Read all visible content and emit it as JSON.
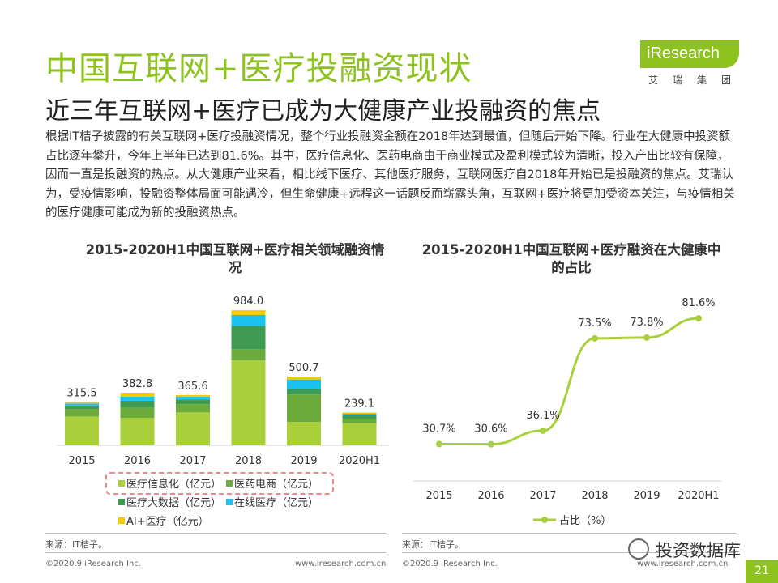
{
  "header": {
    "title": "中国互联网+医疗投融资现状",
    "subtitle": "近三年互联网+医疗已成为大健康产业投融资的焦点",
    "logo_text": "iResearch",
    "logo_sub": "艾瑞集团"
  },
  "body_text": "根据IT桔子披露的有关互联网+医疗投融资情况，整个行业投融资金额在2018年达到最值，但随后开始下降。行业在大健康中投资额占比逐年攀升，今年上半年已达到81.6%。其中，医疗信息化、医药电商由于商业模式及盈利模式较为清晰，投入产出比较有保障，因而一直是投融资的热点。从大健康产业来看，相比线下医疗、其他医疗服务，互联网医疗自2018年开始已是投融资的焦点。艾瑞认为，受疫情影响，投融资整体局面可能遇冷，但生命健康+远程这一话题反而崭露头角，互联网+医疗将更加受资本关注，与疫情相关的医疗健康可能成为新的投融资热点。",
  "colors": {
    "accent": "#8dc21f",
    "series": [
      "#a9cf3a",
      "#6aab3b",
      "#3f9a52",
      "#19c3ee",
      "#f7c800"
    ]
  },
  "chart_data": [
    {
      "type": "bar",
      "stacked": true,
      "title": "2015-2020H1中国互联网+医疗相关领域融资情况",
      "categories": [
        "2015",
        "2016",
        "2017",
        "2018",
        "2019",
        "2020H1"
      ],
      "totals": [
        315.5,
        382.8,
        365.6,
        984.0,
        500.7,
        239.1
      ],
      "total_labels": [
        "315.5",
        "382.8",
        "365.6",
        "984.0",
        "500.7",
        "239.1"
      ],
      "series": [
        {
          "name": "医疗信息化（亿元）",
          "values": [
            210,
            200,
            240,
            620,
            170,
            160
          ]
        },
        {
          "name": "医药电商（亿元）",
          "values": [
            55,
            75,
            60,
            80,
            200,
            35
          ]
        },
        {
          "name": "医疗大数据（亿元）",
          "values": [
            25,
            50,
            35,
            170,
            40,
            25
          ]
        },
        {
          "name": "在线医疗（亿元）",
          "values": [
            15,
            30,
            20,
            80,
            70,
            10
          ]
        },
        {
          "name": "AI+医疗（亿元）",
          "values": [
            10,
            28,
            11,
            34,
            21,
            9
          ]
        }
      ],
      "ylim": [
        0,
        1050
      ]
    },
    {
      "type": "line",
      "title": "2015-2020H1中国互联网+医疗融资在大健康中的占比",
      "x": [
        "2015",
        "2016",
        "2017",
        "2018",
        "2019",
        "2020H1"
      ],
      "series": [
        {
          "name": "占比（%）",
          "values": [
            30.7,
            30.6,
            36.1,
            73.5,
            73.8,
            81.6
          ]
        }
      ],
      "labels": [
        "30.7%",
        "30.6%",
        "36.1%",
        "73.5%",
        "73.8%",
        "81.6%"
      ],
      "ylim": [
        0,
        100
      ]
    }
  ],
  "legend_rows": [
    [
      "医疗信息化（亿元）",
      "医药电商（亿元）"
    ],
    [
      "医疗大数据（亿元）",
      "在线医疗（亿元）"
    ],
    [
      "AI+医疗（亿元）"
    ]
  ],
  "line_legend": "占比（%）",
  "source_left": "来源：IT桔子。",
  "source_right": "来源：IT桔子。",
  "footer": {
    "copyright_left": "©2020.9 iResearch Inc.",
    "url_left": "www.iresearch.com.cn",
    "copyright_right": "©2020.9 iResearch Inc.",
    "url_right": "www.iresearch.com.cn",
    "page": "21"
  },
  "watermark": "投资数据库"
}
